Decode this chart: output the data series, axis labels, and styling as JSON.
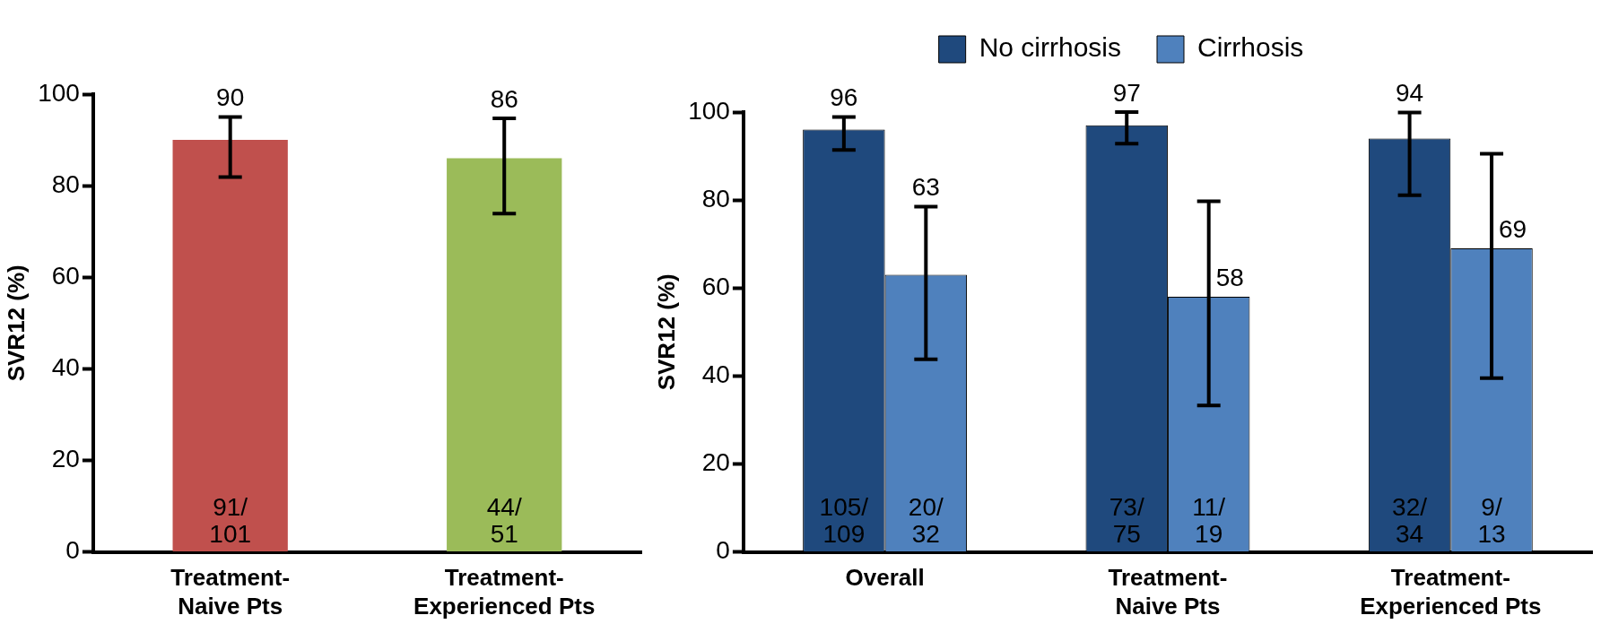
{
  "chart_data": [
    {
      "type": "bar",
      "ylabel": "SVR12 (%)",
      "categories": [
        "Treatment-Naive Pts",
        "Treatment-Experienced Pts"
      ],
      "ylim": [
        0,
        100
      ],
      "yticks": [
        0,
        20,
        40,
        60,
        80,
        100
      ],
      "grid": false,
      "legend": false,
      "data_labels": true,
      "series": [
        {
          "colors": [
            "#c0504d",
            "#9bbb59"
          ],
          "values": [
            90,
            86
          ],
          "errors": [
            [
              81.9,
              95.0
            ],
            [
              73.9,
              94.7
            ]
          ]
        }
      ],
      "annotations": [
        "91/101",
        "44/51"
      ]
    },
    {
      "type": "bar",
      "ylabel": "SVR12 (%)",
      "categories": [
        "Overall",
        "Treatment-Naive Pts",
        "Treatment-Experienced Pts"
      ],
      "ylim": [
        0,
        100
      ],
      "yticks": [
        0,
        20,
        40,
        60,
        80,
        100
      ],
      "grid": false,
      "legend": "top",
      "data_labels": true,
      "series": [
        {
          "name": "No cirrhosis",
          "color": "#1f497d",
          "values": [
            96,
            97,
            94
          ],
          "errors": [
            [
              91.4,
              98.9
            ],
            [
              92.8,
              100
            ],
            [
              81.1,
              99.9
            ]
          ]
        },
        {
          "name": "Cirrhosis",
          "color": "#4f81bd",
          "values": [
            63,
            58,
            69
          ],
          "errors": [
            [
              43.8,
              78.5
            ],
            [
              33.3,
              79.7
            ],
            [
              39.5,
              90.5
            ]
          ]
        }
      ],
      "annotations": [
        "105/109",
        "73/75",
        "32/34",
        "20/32",
        "11/19",
        "9/13"
      ]
    }
  ]
}
